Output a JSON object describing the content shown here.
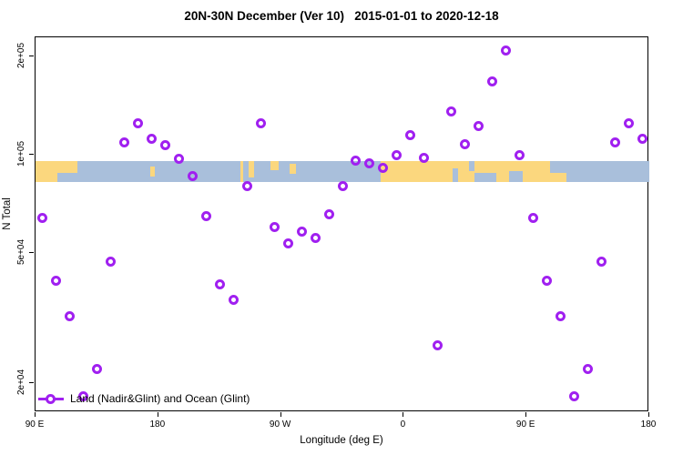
{
  "title": "20N-30N December (Ver 10)   2015-01-01 to 2020-12-18",
  "x_axis_label": "Longitude (deg E)",
  "y_axis_label": "N Total",
  "legend": {
    "label": "Land (Nadir&Glint) and Ocean (Glint)"
  },
  "colors": {
    "marker": "#A020F0",
    "land": "#FBD77E",
    "ocean": "#A9BFDB",
    "axis": "#000000",
    "background": "#FFFFFF"
  },
  "map_strip": {
    "land_segments": [
      {
        "from": 90,
        "to": 120.5,
        "top_pct": 0,
        "h_pct": 100
      },
      {
        "from": 174,
        "to": 177.5,
        "top_pct": 25,
        "h_pct": 50
      },
      {
        "from": 240.5,
        "to": 242.5,
        "top_pct": 0,
        "h_pct": 100
      },
      {
        "from": 246,
        "to": 250,
        "top_pct": 0,
        "h_pct": 80
      },
      {
        "from": 262,
        "to": 268,
        "top_pct": 0,
        "h_pct": 42
      },
      {
        "from": 276,
        "to": 281,
        "top_pct": 15,
        "h_pct": 45
      },
      {
        "from": 343,
        "to": 479,
        "top_pct": 0,
        "h_pct": 100
      }
    ],
    "sea_notches": [
      {
        "from": 106,
        "to": 120.5,
        "top_pct": 55,
        "h_pct": 45
      },
      {
        "from": 395.5,
        "to": 399.5,
        "top_pct": 35,
        "h_pct": 65
      },
      {
        "from": 408,
        "to": 412,
        "top_pct": 0,
        "h_pct": 50
      },
      {
        "from": 412,
        "to": 428,
        "top_pct": 55,
        "h_pct": 45
      },
      {
        "from": 437,
        "to": 447,
        "top_pct": 50,
        "h_pct": 50
      },
      {
        "from": 467,
        "to": 479,
        "top_pct": 0,
        "h_pct": 55
      }
    ]
  },
  "chart_data": {
    "type": "scatter",
    "title": "20N-30N December (Ver 10)   2015-01-01 to 2020-12-18",
    "xlabel": "Longitude (deg E)",
    "ylabel": "N Total",
    "legend_entries": [
      "Land (Nadir&Glint) and Ocean (Glint)"
    ],
    "legend_position": "bottom-left",
    "grid": false,
    "x_axis": {
      "min": 90,
      "max": 540,
      "ticks": [
        {
          "deg": 90,
          "label": "90 E"
        },
        {
          "deg": 180,
          "label": "180"
        },
        {
          "deg": 270,
          "label": "90 W"
        },
        {
          "deg": 360,
          "label": "0"
        },
        {
          "deg": 450,
          "label": "90 E"
        },
        {
          "deg": 540,
          "label": "180"
        }
      ]
    },
    "y_axis": {
      "scale": "log10",
      "min": 16500,
      "max": 228000,
      "ticks": [
        {
          "value": 20000,
          "label": "2e+04"
        },
        {
          "value": 50000,
          "label": "5e+04"
        },
        {
          "value": 100000,
          "label": "1e+05"
        },
        {
          "value": 200000,
          "label": "2e+05"
        }
      ]
    },
    "map_band": {
      "y_top_value": 95600,
      "y_bottom_value": 82500
    },
    "points": [
      {
        "lon": 95,
        "n": 64000
      },
      {
        "lon": 105,
        "n": 41000
      },
      {
        "lon": 115,
        "n": 32000
      },
      {
        "lon": 125,
        "n": 18200
      },
      {
        "lon": 135,
        "n": 22000
      },
      {
        "lon": 145,
        "n": 47000
      },
      {
        "lon": 155,
        "n": 109000
      },
      {
        "lon": 165,
        "n": 125000
      },
      {
        "lon": 175,
        "n": 112000
      },
      {
        "lon": 185,
        "n": 107000
      },
      {
        "lon": 195,
        "n": 97000
      },
      {
        "lon": 205,
        "n": 86000
      },
      {
        "lon": 215,
        "n": 65000
      },
      {
        "lon": 225,
        "n": 40000
      },
      {
        "lon": 235,
        "n": 36000
      },
      {
        "lon": 245,
        "n": 80000
      },
      {
        "lon": 255,
        "n": 125000
      },
      {
        "lon": 265,
        "n": 60000
      },
      {
        "lon": 275,
        "n": 53500
      },
      {
        "lon": 285,
        "n": 58000
      },
      {
        "lon": 295,
        "n": 55500
      },
      {
        "lon": 305,
        "n": 65500
      },
      {
        "lon": 315,
        "n": 80000
      },
      {
        "lon": 325,
        "n": 96000
      },
      {
        "lon": 335,
        "n": 94000
      },
      {
        "lon": 345,
        "n": 91000
      },
      {
        "lon": 355,
        "n": 100000
      },
      {
        "lon": 365,
        "n": 115000
      },
      {
        "lon": 375,
        "n": 98000
      },
      {
        "lon": 385,
        "n": 26000
      },
      {
        "lon": 395,
        "n": 136000
      },
      {
        "lon": 405,
        "n": 108000
      },
      {
        "lon": 415,
        "n": 122500
      },
      {
        "lon": 425,
        "n": 168000
      },
      {
        "lon": 435,
        "n": 209000
      },
      {
        "lon": 445,
        "n": 100000
      },
      {
        "lon": 455,
        "n": 64000
      },
      {
        "lon": 465,
        "n": 41000
      },
      {
        "lon": 475,
        "n": 32000
      },
      {
        "lon": 485,
        "n": 18200
      },
      {
        "lon": 495,
        "n": 22000
      },
      {
        "lon": 505,
        "n": 47000
      },
      {
        "lon": 515,
        "n": 109000
      },
      {
        "lon": 525,
        "n": 125000
      },
      {
        "lon": 535,
        "n": 112000
      }
    ]
  }
}
